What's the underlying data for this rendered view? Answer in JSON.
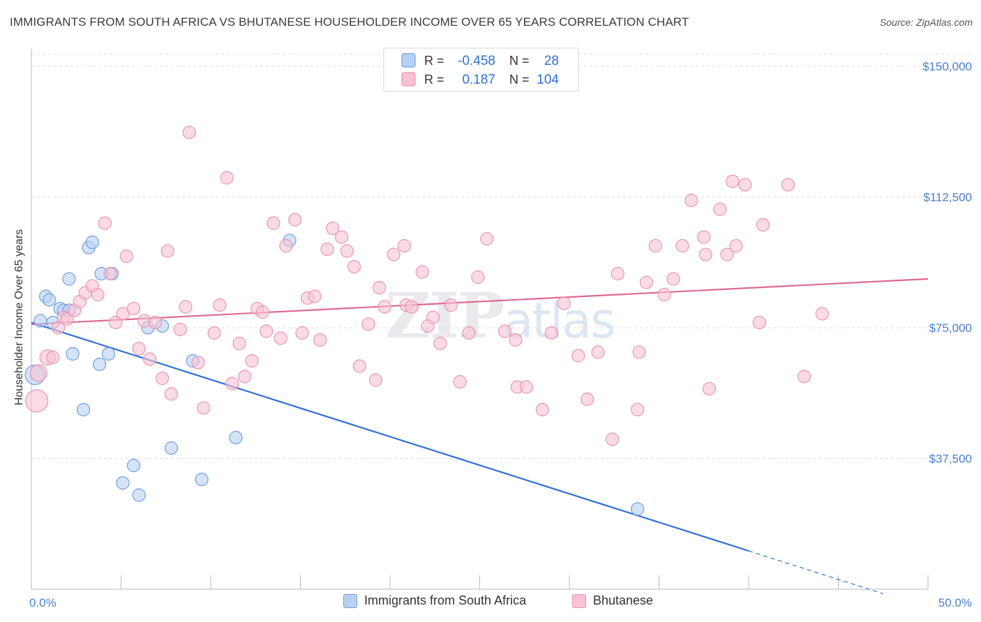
{
  "title": "IMMIGRANTS FROM SOUTH AFRICA VS BHUTANESE HOUSEHOLDER INCOME OVER 65 YEARS CORRELATION CHART",
  "source": "Source: ZipAtlas.com",
  "watermark": {
    "zip": "ZIP",
    "atlas": "atlas"
  },
  "legend_box": {
    "rows": [
      {
        "r_label": "R =",
        "r_value": "-0.458",
        "n_label": "N =",
        "n_value": "28"
      },
      {
        "r_label": "R =",
        "r_value": "0.187",
        "n_label": "N =",
        "n_value": "104"
      }
    ]
  },
  "colors": {
    "blue_fill": "#b8d0f3",
    "blue_stroke": "#6f9ee0",
    "blue_line": "#2f6fd6",
    "pink_fill": "#f7c3d3",
    "pink_stroke": "#e994b2",
    "pink_line": "#e0698f",
    "tick_label": "#4a7fcf",
    "grid": "#dddddd"
  },
  "chart_data": {
    "type": "scatter",
    "xlabel": "",
    "ylabel": "Householder Income Over 65 years",
    "xlim": [
      0,
      50
    ],
    "ylim": [
      0,
      155000
    ],
    "y_ticks": [
      37500,
      75000,
      112500,
      150000
    ],
    "y_tick_labels": [
      "$37,500",
      "$75,000",
      "$112,500",
      "$150,000"
    ],
    "x_tick_labels": [
      "0.0%",
      "50.0%"
    ],
    "x_tick_labels_at": [
      0,
      50
    ],
    "grid": true,
    "series": [
      {
        "name": "Immigrants from South Africa",
        "color": "blue",
        "r": -0.458,
        "n": 28,
        "trend": {
          "x0": 0,
          "y0": 76500,
          "x1": 40,
          "y1": 11000,
          "dash_to_x": 47.5
        },
        "points": [
          [
            0.2,
            61500,
            14
          ],
          [
            0.5,
            77000,
            9
          ],
          [
            0.8,
            84000,
            9
          ],
          [
            1.0,
            83000,
            9
          ],
          [
            1.2,
            76500,
            9
          ],
          [
            1.6,
            80500,
            9
          ],
          [
            1.8,
            80000,
            9
          ],
          [
            2.1,
            80000,
            9
          ],
          [
            2.1,
            89000,
            9
          ],
          [
            2.3,
            67500,
            9
          ],
          [
            2.9,
            51500,
            9
          ],
          [
            3.2,
            98000,
            9
          ],
          [
            3.4,
            99500,
            9
          ],
          [
            3.8,
            64500,
            9
          ],
          [
            3.9,
            90500,
            9
          ],
          [
            4.3,
            67500,
            9
          ],
          [
            4.5,
            90500,
            9
          ],
          [
            5.1,
            30500,
            9
          ],
          [
            5.7,
            35500,
            9
          ],
          [
            6.0,
            27000,
            9
          ],
          [
            6.5,
            75000,
            9
          ],
          [
            7.8,
            40500,
            9
          ],
          [
            7.3,
            75500,
            9
          ],
          [
            9.0,
            65500,
            9
          ],
          [
            9.5,
            31500,
            9
          ],
          [
            11.4,
            43500,
            9
          ],
          [
            14.4,
            100000,
            9
          ],
          [
            33.8,
            23000,
            9
          ]
        ]
      },
      {
        "name": "Bhutanese",
        "color": "pink",
        "r": 0.187,
        "n": 104,
        "trend": {
          "x0": 0,
          "y0": 76000,
          "x1": 50,
          "y1": 89000
        },
        "points": [
          [
            0.3,
            54000,
            16
          ],
          [
            0.4,
            62000,
            12
          ],
          [
            0.9,
            66500,
            11
          ],
          [
            1.2,
            66500,
            9
          ],
          [
            1.5,
            75000,
            9
          ],
          [
            1.8,
            78000,
            9
          ],
          [
            2.0,
            77500,
            9
          ],
          [
            2.4,
            80000,
            9
          ],
          [
            2.7,
            82500,
            9
          ],
          [
            3.0,
            85000,
            9
          ],
          [
            3.4,
            87000,
            9
          ],
          [
            3.7,
            84500,
            9
          ],
          [
            4.1,
            105000,
            9
          ],
          [
            4.4,
            90500,
            9
          ],
          [
            4.7,
            76500,
            9
          ],
          [
            5.1,
            79000,
            9
          ],
          [
            5.3,
            95500,
            9
          ],
          [
            5.7,
            80500,
            9
          ],
          [
            6.0,
            69000,
            9
          ],
          [
            6.3,
            77000,
            9
          ],
          [
            6.6,
            66000,
            9
          ],
          [
            6.9,
            76500,
            9
          ],
          [
            7.3,
            60500,
            9
          ],
          [
            7.6,
            97000,
            9
          ],
          [
            7.8,
            56000,
            9
          ],
          [
            8.3,
            74500,
            9
          ],
          [
            8.6,
            81000,
            9
          ],
          [
            8.8,
            131000,
            9
          ],
          [
            9.3,
            65000,
            9
          ],
          [
            9.6,
            52000,
            9
          ],
          [
            10.2,
            73500,
            9
          ],
          [
            10.5,
            81500,
            9
          ],
          [
            10.9,
            118000,
            9
          ],
          [
            11.2,
            59000,
            9
          ],
          [
            11.6,
            70500,
            9
          ],
          [
            11.9,
            61000,
            9
          ],
          [
            12.3,
            65500,
            9
          ],
          [
            12.6,
            80500,
            9
          ],
          [
            12.9,
            79500,
            9
          ],
          [
            13.1,
            74000,
            9
          ],
          [
            13.5,
            105000,
            9
          ],
          [
            13.9,
            72000,
            9
          ],
          [
            14.2,
            98500,
            9
          ],
          [
            14.7,
            106000,
            9
          ],
          [
            15.1,
            73500,
            9
          ],
          [
            15.4,
            83500,
            9
          ],
          [
            15.8,
            84000,
            9
          ],
          [
            16.1,
            71500,
            9
          ],
          [
            16.5,
            97500,
            9
          ],
          [
            16.8,
            103500,
            9
          ],
          [
            17.3,
            101000,
            9
          ],
          [
            17.6,
            97000,
            9
          ],
          [
            18.0,
            92500,
            9
          ],
          [
            18.3,
            64000,
            9
          ],
          [
            18.8,
            76000,
            9
          ],
          [
            19.2,
            60000,
            9
          ],
          [
            19.4,
            86500,
            9
          ],
          [
            19.7,
            81000,
            9
          ],
          [
            20.2,
            96000,
            9
          ],
          [
            20.8,
            98500,
            9
          ],
          [
            20.9,
            81500,
            9
          ],
          [
            21.2,
            81000,
            9
          ],
          [
            21.8,
            91000,
            9
          ],
          [
            22.1,
            75500,
            9
          ],
          [
            22.4,
            78000,
            9
          ],
          [
            22.8,
            70500,
            9
          ],
          [
            23.4,
            81500,
            9
          ],
          [
            23.9,
            59500,
            9
          ],
          [
            24.4,
            73500,
            9
          ],
          [
            24.9,
            89500,
            9
          ],
          [
            25.4,
            100500,
            9
          ],
          [
            26.4,
            74000,
            9
          ],
          [
            27.0,
            71500,
            9
          ],
          [
            27.1,
            58000,
            9
          ],
          [
            27.6,
            58000,
            9
          ],
          [
            28.5,
            51500,
            9
          ],
          [
            29.0,
            73500,
            9
          ],
          [
            29.7,
            82000,
            9
          ],
          [
            30.5,
            67000,
            9
          ],
          [
            31.0,
            54500,
            9
          ],
          [
            31.6,
            68000,
            9
          ],
          [
            32.4,
            43000,
            9
          ],
          [
            32.7,
            90500,
            9
          ],
          [
            33.8,
            51500,
            9
          ],
          [
            33.9,
            68000,
            9
          ],
          [
            34.3,
            88000,
            9
          ],
          [
            34.8,
            98500,
            9
          ],
          [
            35.3,
            84500,
            9
          ],
          [
            35.8,
            89000,
            9
          ],
          [
            36.3,
            98500,
            9
          ],
          [
            36.8,
            111500,
            9
          ],
          [
            37.5,
            101000,
            9
          ],
          [
            37.6,
            96000,
            9
          ],
          [
            37.8,
            57500,
            9
          ],
          [
            38.4,
            109000,
            9
          ],
          [
            38.8,
            96000,
            9
          ],
          [
            39.1,
            117000,
            9
          ],
          [
            39.3,
            98500,
            9
          ],
          [
            39.8,
            116000,
            9
          ],
          [
            40.8,
            104500,
            9
          ],
          [
            42.2,
            116000,
            9
          ],
          [
            43.1,
            61000,
            9
          ],
          [
            44.1,
            79000,
            9
          ],
          [
            40.6,
            76500,
            9
          ]
        ]
      }
    ]
  },
  "bottom_legend": [
    {
      "label": "Immigrants from South Africa",
      "color": "blue"
    },
    {
      "label": "Bhutanese",
      "color": "pink"
    }
  ]
}
